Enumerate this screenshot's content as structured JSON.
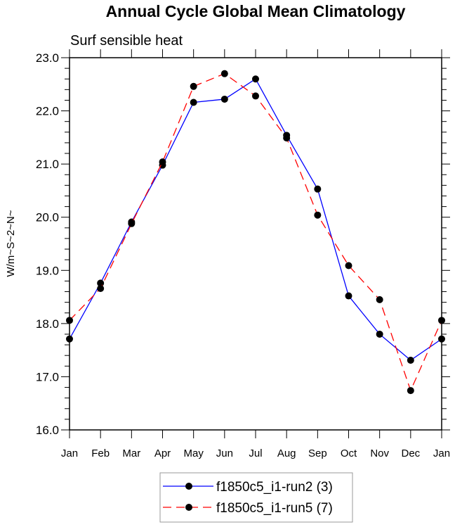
{
  "chart_data": {
    "type": "line",
    "title": "Annual Cycle Global Mean Climatology",
    "subtitle": "Surf sensible heat",
    "xlabel": "",
    "ylabel": "W/m~S~2~N~",
    "ylim": [
      16.0,
      23.0
    ],
    "yticks": [
      "16.0",
      "17.0",
      "18.0",
      "19.0",
      "20.0",
      "21.0",
      "22.0",
      "23.0"
    ],
    "categories": [
      "Jan",
      "Feb",
      "Mar",
      "Apr",
      "May",
      "Jun",
      "Jul",
      "Aug",
      "Sep",
      "Oct",
      "Nov",
      "Dec",
      "Jan"
    ],
    "grid": false,
    "legend_position": "bottom-center",
    "series": [
      {
        "name": "f1850c5_i1-run2 (3)",
        "color": "#0000ff",
        "dash": "solid",
        "values": [
          17.71,
          18.76,
          19.91,
          20.98,
          22.16,
          22.22,
          22.6,
          21.54,
          20.53,
          18.52,
          17.8,
          17.31,
          17.71
        ]
      },
      {
        "name": "f1850c5_i1-run5 (7)",
        "color": "#ff0000",
        "dash": "dashed",
        "values": [
          18.06,
          18.66,
          19.88,
          21.04,
          22.46,
          22.7,
          22.28,
          21.49,
          20.04,
          19.09,
          18.45,
          16.74,
          18.06
        ]
      }
    ]
  }
}
